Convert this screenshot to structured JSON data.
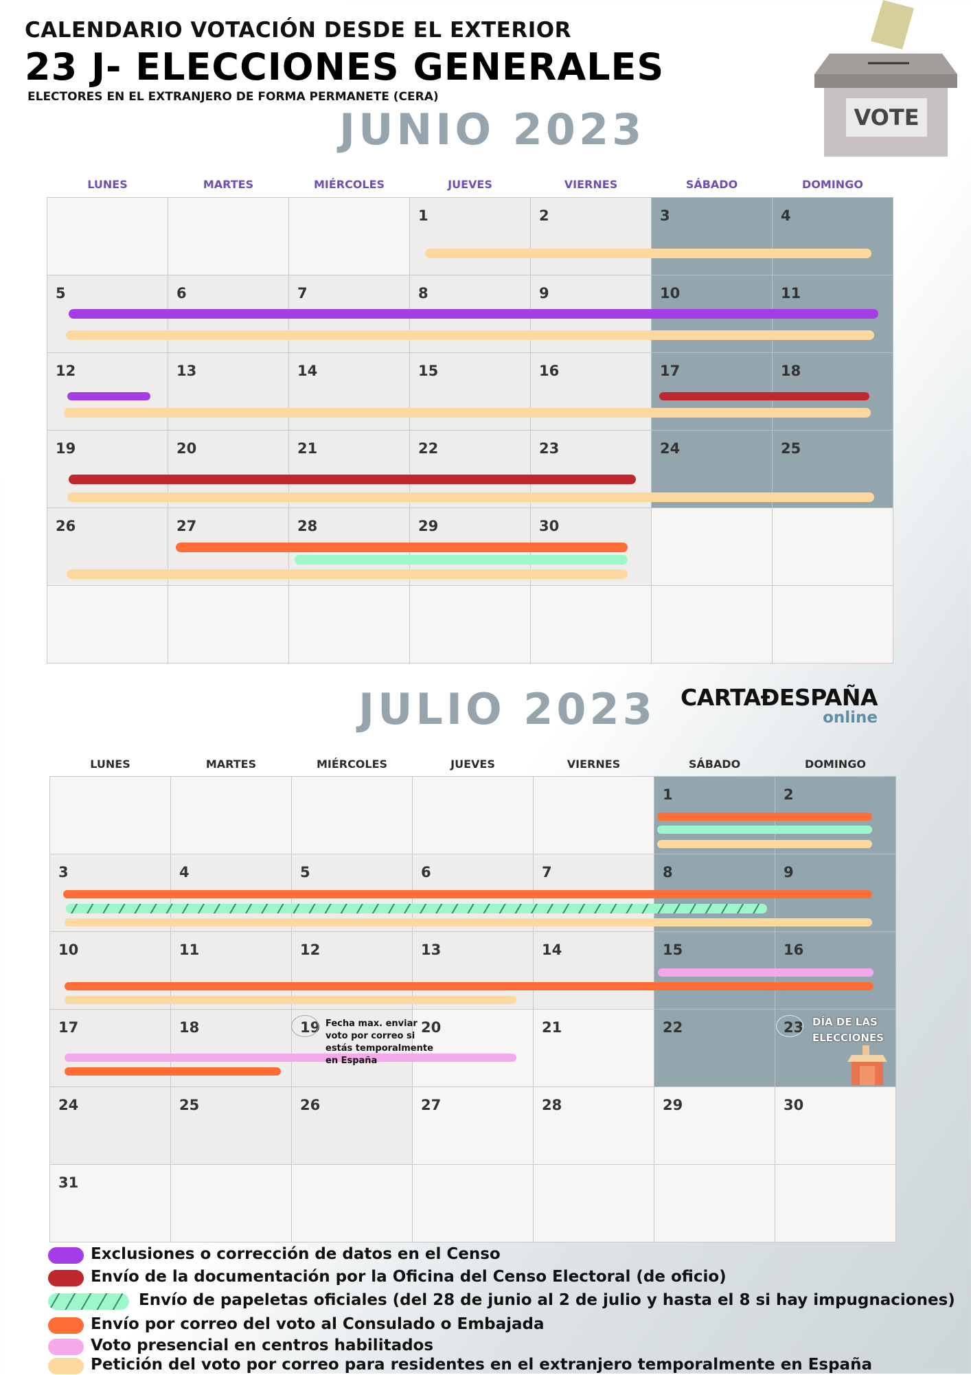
{
  "header": {
    "line1": "CALENDARIO VOTACIÓN DESDE EL EXTERIOR",
    "line2": "23 J- ELECCIONES GENERALES",
    "line3": "ELECTORES EN EL EXTRANJERO DE FORMA PERMANETE (CERA)"
  },
  "ballot_box": {
    "label": "VOTE"
  },
  "brand": {
    "name": "CARTAÐESPAÑA",
    "sub": "online"
  },
  "weekdays": [
    "LUNES",
    "MARTES",
    "MIÉRCOLES",
    "JUEVES",
    "VIERNES",
    "SÁBADO",
    "DOMINGO"
  ],
  "colors": {
    "exclusiones": "#a53de6",
    "documentacion": "#c0282f",
    "papeletas": "#9cf7cb",
    "correo_consulado": "#ff6c35",
    "presencial": "#f6a8ec",
    "peticion": "#fdd9a0",
    "weekday_june": "#6e4db5",
    "weekday_july": "#2b2b2b",
    "weekend": "#93a6ad"
  },
  "june": {
    "title": "JUNIO 2023",
    "days": [
      "",
      "",
      "",
      "1",
      "2",
      "3",
      "4",
      "5",
      "6",
      "7",
      "8",
      "9",
      "10",
      "11",
      "12",
      "13",
      "14",
      "15",
      "16",
      "17",
      "18",
      "19",
      "20",
      "21",
      "22",
      "23",
      "24",
      "25",
      "26",
      "27",
      "28",
      "29",
      "30",
      "",
      "",
      "",
      "",
      "",
      "",
      "",
      "",
      ""
    ]
  },
  "july": {
    "title": "JULIO 2023",
    "days": [
      "",
      "",
      "",
      "",
      "",
      "1",
      "2",
      "3",
      "4",
      "5",
      "6",
      "7",
      "8",
      "9",
      "10",
      "11",
      "12",
      "13",
      "14",
      "15",
      "16",
      "17",
      "18",
      "19",
      "20",
      "21",
      "22",
      "23",
      "24",
      "25",
      "26",
      "27",
      "28",
      "29",
      "30",
      "31",
      "",
      "",
      "",
      "",
      "",
      ""
    ],
    "note_19": "Fecha max. enviar voto por correo si estás temporalmente en España",
    "note_23": "DÍA DE LAS ELECCIONES"
  },
  "legend": [
    {
      "key": "exclusiones",
      "text": "Exclusiones o corrección de datos en el Censo"
    },
    {
      "key": "documentacion",
      "text": "Envío de la documentación por la Oficina del Censo Electoral (de oficio)"
    },
    {
      "key": "papeletas",
      "text": "Envío de papeletas oficiales (del 28 de junio al 2 de julio y hasta el 8 si hay impugnaciones)"
    },
    {
      "key": "correo_consulado",
      "text": "Envío por correo del voto al Consulado o Embajada"
    },
    {
      "key": "presencial",
      "text": "Voto presencial en centros habilitados"
    },
    {
      "key": "peticion",
      "text": "Petición del voto por correo para residentes en el extranjero temporalmente en España"
    }
  ]
}
